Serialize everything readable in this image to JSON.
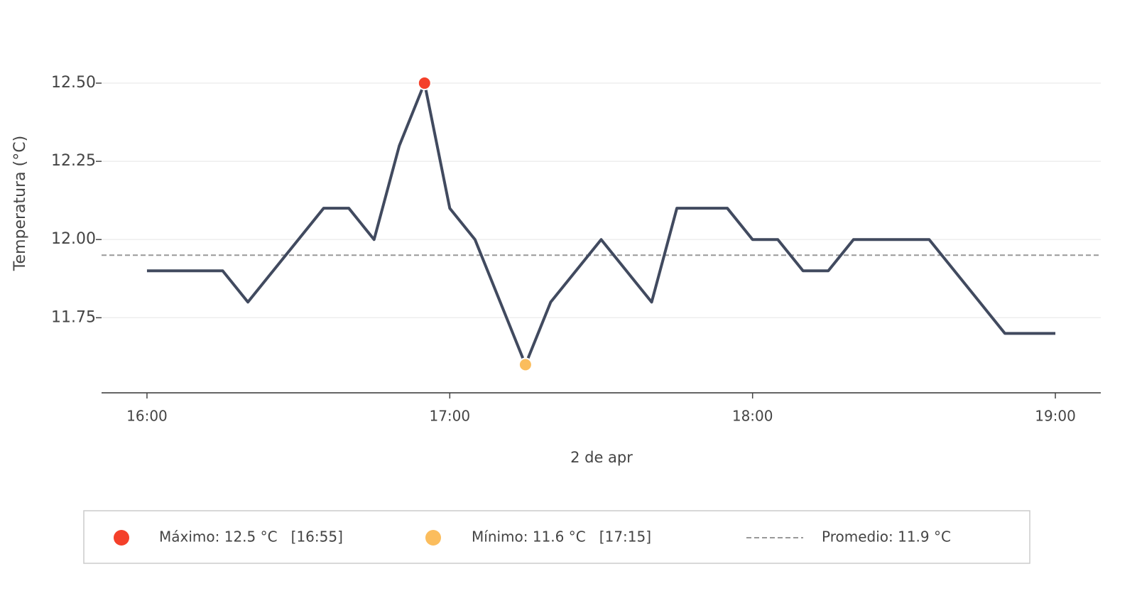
{
  "chart_data": {
    "type": "line",
    "x_label": "2 de apr",
    "y_label": "Temperatura (°C)",
    "x": [
      "16:00",
      "16:05",
      "16:10",
      "16:15",
      "16:20",
      "16:25",
      "16:30",
      "16:35",
      "16:40",
      "16:45",
      "16:50",
      "16:55",
      "17:00",
      "17:05",
      "17:10",
      "17:15",
      "17:20",
      "17:25",
      "17:30",
      "17:35",
      "17:40",
      "17:45",
      "17:50",
      "17:55",
      "18:00",
      "18:05",
      "18:10",
      "18:15",
      "18:20",
      "18:25",
      "18:30",
      "18:35",
      "18:40",
      "18:45",
      "18:50",
      "18:55",
      "19:00"
    ],
    "series": [
      {
        "name": "Temperatura",
        "color": "#414a5f",
        "values": [
          11.9,
          11.9,
          11.9,
          11.9,
          11.8,
          11.9,
          12.0,
          12.1,
          12.1,
          12.0,
          12.3,
          12.5,
          12.1,
          12.0,
          11.8,
          11.6,
          11.8,
          11.9,
          12.0,
          11.9,
          11.8,
          12.1,
          12.1,
          12.1,
          12.0,
          12.0,
          11.9,
          11.9,
          12.0,
          12.0,
          12.0,
          12.0,
          11.9,
          11.8,
          11.7,
          11.7,
          11.7
        ]
      }
    ],
    "max_point": {
      "x": "16:55",
      "value": 12.5,
      "color": "#f4402a",
      "label": "Máximo: 12.5 °C   [16:55]"
    },
    "min_point": {
      "x": "17:15",
      "value": 11.6,
      "color": "#fbbd5d",
      "label": "Mínimo: 11.6 °C   [17:15]"
    },
    "average": {
      "value": 11.95,
      "color": "#999999",
      "label": "Promedio: 11.9 °C"
    },
    "xlim": [
      "15:51",
      "19:09"
    ],
    "xticks": [
      "16:00",
      "17:00",
      "18:00",
      "19:00"
    ],
    "ylim": [
      11.51,
      12.6
    ],
    "yticks": [
      {
        "value": 11.75,
        "label": "11.75"
      },
      {
        "value": 12,
        "label": "12.00"
      },
      {
        "value": 12.25,
        "label": "12.25"
      },
      {
        "value": 12.5,
        "label": "12.50"
      }
    ],
    "grid": true
  }
}
